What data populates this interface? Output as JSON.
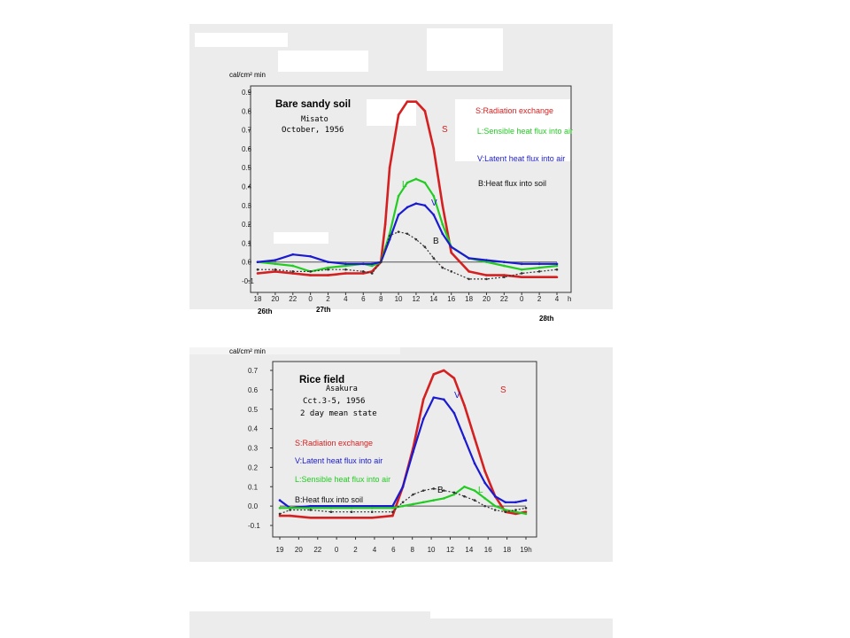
{
  "colors": {
    "S": "#d42020",
    "L": "#22cc22",
    "V": "#1a1ad0",
    "B": "#333333",
    "zero": "#555555"
  },
  "chart_data": [
    {
      "type": "line",
      "title": "Bare sandy soil",
      "subtitle_site": "Misato",
      "subtitle_date": "October, 1956",
      "ylabel": "cal/cm² min",
      "x_ticks": [
        "18",
        "20",
        "22",
        "0",
        "2",
        "4",
        "6",
        "8",
        "10",
        "12",
        "14",
        "16",
        "18",
        "20",
        "22",
        "0",
        "2",
        "4"
      ],
      "x_unit": "h",
      "day_labels": [
        "26th",
        "27th",
        "28th"
      ],
      "y_ticks": [
        "-0.1",
        "0.0",
        "0.1",
        "0.2",
        "0.3",
        "0.4",
        "0.5",
        "0.6",
        "0.7",
        "0.8",
        "0.9"
      ],
      "ylim": [
        -0.1,
        0.9
      ],
      "grid": false,
      "legend": [
        {
          "text": "S:Radiation exchange",
          "color": "#d42020"
        },
        {
          "text": "L:Sensible heat flux into air",
          "color": "#22cc22"
        },
        {
          "text": "V:Latent heat flux into air",
          "color": "#1a1ad0"
        },
        {
          "text": "B:Heat flux into soil",
          "color": "#111111"
        }
      ],
      "series_letters": [
        "S",
        "L",
        "V",
        "B"
      ],
      "series": [
        {
          "name": "S",
          "color": "#d42020",
          "x": [
            0,
            2,
            4,
            6,
            8,
            10,
            12,
            13,
            14,
            14.5,
            15,
            16,
            17,
            18,
            19,
            20,
            21,
            22,
            24,
            26,
            28,
            30,
            32,
            34
          ],
          "values": [
            -0.06,
            -0.05,
            -0.06,
            -0.07,
            -0.07,
            -0.06,
            -0.06,
            -0.05,
            0.0,
            0.2,
            0.5,
            0.78,
            0.85,
            0.85,
            0.8,
            0.6,
            0.3,
            0.05,
            -0.05,
            -0.07,
            -0.07,
            -0.08,
            -0.08,
            -0.08
          ]
        },
        {
          "name": "L",
          "color": "#22cc22",
          "x": [
            0,
            2,
            4,
            6,
            8,
            10,
            12,
            13,
            14,
            15,
            16,
            17,
            18,
            19,
            20,
            21,
            22,
            24,
            26,
            28,
            30,
            32,
            34
          ],
          "values": [
            0.0,
            -0.01,
            -0.02,
            -0.05,
            -0.03,
            -0.02,
            -0.01,
            -0.02,
            0.0,
            0.15,
            0.35,
            0.42,
            0.44,
            0.42,
            0.35,
            0.2,
            0.08,
            0.02,
            0.0,
            -0.02,
            -0.04,
            -0.03,
            -0.02
          ]
        },
        {
          "name": "V",
          "color": "#1a1ad0",
          "x": [
            0,
            2,
            4,
            6,
            8,
            10,
            12,
            13,
            14,
            15,
            16,
            17,
            18,
            19,
            20,
            21,
            22,
            24,
            26,
            28,
            30,
            32,
            34
          ],
          "values": [
            0.0,
            0.01,
            0.04,
            0.03,
            0.0,
            -0.01,
            -0.01,
            -0.01,
            0.0,
            0.12,
            0.25,
            0.29,
            0.31,
            0.3,
            0.25,
            0.15,
            0.08,
            0.02,
            0.01,
            0.0,
            -0.01,
            -0.01,
            -0.01
          ]
        },
        {
          "name": "B",
          "color": "#333333",
          "x": [
            0,
            2,
            4,
            6,
            8,
            10,
            12,
            13,
            14,
            15,
            16,
            17,
            18,
            19,
            20,
            21,
            22,
            24,
            26,
            28,
            30,
            32,
            34
          ],
          "values": [
            -0.04,
            -0.04,
            -0.05,
            -0.05,
            -0.04,
            -0.04,
            -0.05,
            -0.06,
            0.0,
            0.14,
            0.16,
            0.15,
            0.12,
            0.08,
            0.02,
            -0.03,
            -0.05,
            -0.09,
            -0.09,
            -0.08,
            -0.06,
            -0.05,
            -0.04
          ]
        }
      ]
    },
    {
      "type": "line",
      "title": "Rice field",
      "subtitle_site": "Asakura",
      "subtitle_date": "Cct.3-5, 1956",
      "subtitle_note": "2 day mean state",
      "ylabel": "cal/cm² min",
      "x_ticks": [
        "19",
        "20",
        "22",
        "0",
        "2",
        "4",
        "6",
        "8",
        "10",
        "12",
        "14",
        "16",
        "18",
        "19h"
      ],
      "y_ticks": [
        "-0.1",
        "0.0",
        "0.1",
        "0.2",
        "0.3",
        "0.4",
        "0.5",
        "0.6",
        "0.7"
      ],
      "ylim": [
        -0.1,
        0.7
      ],
      "grid": false,
      "legend": [
        {
          "text": "S:Radiation exchange",
          "color": "#d42020"
        },
        {
          "text": "V:Latent heat flux into air",
          "color": "#1a1ad0"
        },
        {
          "text": "L:Sensible heat flux into air",
          "color": "#22cc22"
        },
        {
          "text": "B:Heat flux into soil",
          "color": "#111111"
        }
      ],
      "series_letters": [
        "S",
        "V",
        "B",
        "L"
      ],
      "series": [
        {
          "name": "S",
          "color": "#d42020",
          "x": [
            0,
            1,
            3,
            5,
            7,
            9,
            11,
            12,
            13,
            14,
            15,
            16,
            17,
            18,
            19,
            20,
            21,
            22,
            23,
            24
          ],
          "values": [
            -0.05,
            -0.05,
            -0.06,
            -0.06,
            -0.06,
            -0.06,
            -0.05,
            0.1,
            0.3,
            0.55,
            0.68,
            0.7,
            0.66,
            0.52,
            0.35,
            0.18,
            0.05,
            -0.03,
            -0.04,
            -0.03
          ]
        },
        {
          "name": "V",
          "color": "#1a1ad0",
          "x": [
            0,
            1,
            3,
            5,
            7,
            9,
            11,
            12,
            13,
            14,
            15,
            16,
            17,
            18,
            19,
            20,
            21,
            22,
            23,
            24
          ],
          "values": [
            0.03,
            -0.01,
            0.0,
            0.0,
            0.0,
            0.0,
            0.0,
            0.1,
            0.28,
            0.45,
            0.56,
            0.55,
            0.48,
            0.35,
            0.22,
            0.12,
            0.05,
            0.02,
            0.02,
            0.03
          ]
        },
        {
          "name": "L",
          "color": "#22cc22",
          "x": [
            0,
            1,
            3,
            5,
            7,
            9,
            11,
            12,
            13,
            14,
            15,
            16,
            17,
            18,
            19,
            20,
            21,
            22,
            23,
            24
          ],
          "values": [
            -0.01,
            -0.01,
            -0.01,
            -0.01,
            -0.01,
            -0.01,
            -0.01,
            0.0,
            0.01,
            0.02,
            0.03,
            0.04,
            0.06,
            0.1,
            0.08,
            0.04,
            0.0,
            -0.02,
            -0.03,
            -0.04
          ]
        },
        {
          "name": "B",
          "color": "#333333",
          "x": [
            0,
            1,
            3,
            5,
            7,
            9,
            11,
            12,
            13,
            14,
            15,
            16,
            17,
            18,
            19,
            20,
            21,
            22,
            23,
            24
          ],
          "values": [
            -0.04,
            -0.02,
            -0.02,
            -0.03,
            -0.03,
            -0.03,
            -0.03,
            0.02,
            0.06,
            0.08,
            0.09,
            0.08,
            0.07,
            0.05,
            0.03,
            0.0,
            -0.02,
            -0.03,
            -0.02,
            -0.01
          ]
        }
      ]
    }
  ]
}
